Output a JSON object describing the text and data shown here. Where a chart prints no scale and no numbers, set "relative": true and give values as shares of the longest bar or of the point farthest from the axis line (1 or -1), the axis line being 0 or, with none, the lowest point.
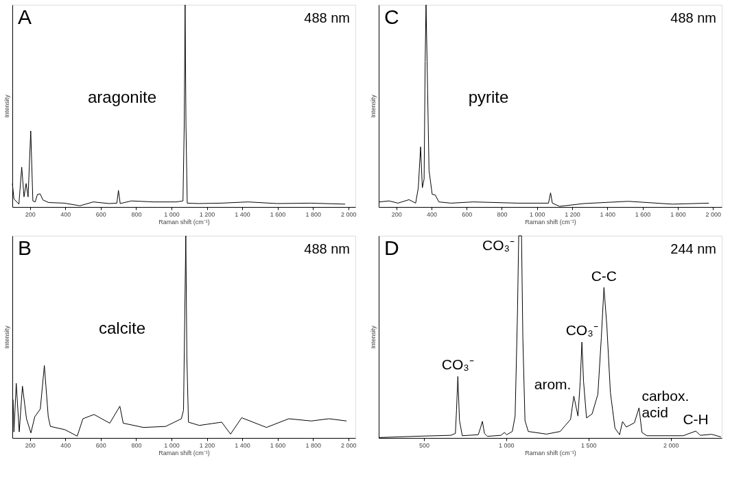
{
  "chart_data": [
    {
      "type": "line",
      "relative": true,
      "xlabel": "Raman shift (cm⁻¹)",
      "ylabel": "Intensity",
      "grid": false,
      "marker": "none",
      "line_style": "solid",
      "xlim": [
        100,
        2040
      ],
      "xticks": [
        200,
        400,
        600,
        800,
        {
          "value": 1000,
          "label": "1 000"
        },
        {
          "value": 1200,
          "label": "1 200"
        },
        {
          "value": 1400,
          "label": "1 400"
        },
        {
          "value": 1600,
          "label": "1 600"
        },
        {
          "value": 1800,
          "label": "1 800"
        },
        {
          "value": 2000,
          "label": "2 000"
        }
      ],
      "annotations": [
        "A",
        "488 nm",
        "aragonite"
      ],
      "series": [
        {
          "color": "#000000",
          "x": [
            100,
            109,
            137,
            153,
            166,
            178,
            189,
            204,
            216,
            229,
            242,
            257,
            273,
            305,
            394,
            482,
            558,
            647,
            691,
            700,
            710,
            773,
            900,
            1027,
            1065,
            1072,
            1077,
            1082,
            1089,
            1153,
            1280,
            1432,
            1596,
            1786,
            1982
          ],
          "values": [
            0.116,
            0.04,
            0.014,
            0.197,
            0.05,
            0.116,
            0.05,
            0.376,
            0.03,
            0.025,
            0.062,
            0.065,
            0.035,
            0.022,
            0.019,
            0.006,
            0.025,
            0.017,
            0.019,
            0.082,
            0.017,
            0.03,
            0.025,
            0.025,
            0.03,
            0.4,
            1.0,
            0.4,
            0.019,
            0.017,
            0.019,
            0.025,
            0.017,
            0.019,
            0.014
          ]
        }
      ]
    },
    {
      "type": "line",
      "relative": true,
      "xlabel": "Raman shift (cm⁻¹)",
      "ylabel": "Intensity",
      "grid": false,
      "marker": "none",
      "line_style": "solid",
      "xlim": [
        100,
        2050
      ],
      "xticks": [
        200,
        400,
        600,
        800,
        {
          "value": 1000,
          "label": "1 000"
        },
        {
          "value": 1200,
          "label": "1 200"
        },
        {
          "value": 1400,
          "label": "1 400"
        },
        {
          "value": 1600,
          "label": "1 600"
        },
        {
          "value": 1800,
          "label": "1 800"
        },
        {
          "value": 2000,
          "label": "2 000"
        }
      ],
      "annotations": [
        "C",
        "488 nm",
        "pyrite"
      ],
      "series": [
        {
          "color": "#000000",
          "x": [
            103,
            159,
            209,
            272,
            310,
            325,
            338,
            348,
            358,
            364,
            369,
            375,
            386,
            404,
            421,
            442,
            511,
            637,
            763,
            889,
            1065,
            1077,
            1087,
            1128,
            1266,
            1518,
            1769,
            1977
          ],
          "values": [
            0.025,
            0.03,
            0.019,
            0.036,
            0.019,
            0.095,
            0.297,
            0.095,
            0.138,
            0.72,
            1.0,
            0.72,
            0.181,
            0.0625,
            0.06,
            0.025,
            0.019,
            0.025,
            0.022,
            0.019,
            0.019,
            0.07,
            0.019,
            0.003,
            0.017,
            0.028,
            0.014,
            0.019
          ]
        }
      ]
    },
    {
      "type": "line",
      "relative": true,
      "xlabel": "Raman shift (cm⁻¹)",
      "ylabel": "Intensity",
      "grid": false,
      "marker": "none",
      "line_style": "solid",
      "xlim": [
        100,
        2040
      ],
      "xticks": [
        200,
        400,
        600,
        800,
        {
          "value": 1000,
          "label": "1 000"
        },
        {
          "value": 1200,
          "label": "1 200"
        },
        {
          "value": 1400,
          "label": "1 400"
        },
        {
          "value": 1600,
          "label": "1 600"
        },
        {
          "value": 1800,
          "label": "1 800"
        },
        {
          "value": 2000,
          "label": "2 000"
        }
      ],
      "annotations": [
        "B",
        "488 nm",
        "calcite"
      ],
      "series": [
        {
          "color": "#000000",
          "x": [
            104,
            109,
            122,
            139,
            157,
            180,
            205,
            227,
            258,
            281,
            303,
            315,
            397,
            467,
            499,
            562,
            651,
            708,
            727,
            841,
            967,
            1056,
            1068,
            1081,
            1087,
            1096,
            1157,
            1284,
            1334,
            1397,
            1537,
            1663,
            1790,
            1891,
            1990
          ],
          "values": [
            0.19,
            0.03,
            0.27,
            0.03,
            0.256,
            0.095,
            0.025,
            0.105,
            0.143,
            0.358,
            0.105,
            0.057,
            0.041,
            0.009,
            0.095,
            0.116,
            0.073,
            0.157,
            0.073,
            0.052,
            0.057,
            0.095,
            0.138,
            1.0,
            0.396,
            0.078,
            0.062,
            0.078,
            0.019,
            0.1,
            0.052,
            0.095,
            0.084,
            0.095,
            0.084
          ]
        }
      ]
    },
    {
      "type": "line",
      "relative": true,
      "xlabel": "Raman shift (cm⁻¹)",
      "ylabel": "Intensity",
      "grid": false,
      "marker": "none",
      "line_style": "solid",
      "xlim": [
        225,
        2310
      ],
      "xticks": [
        500,
        {
          "value": 1000,
          "label": "1 000"
        },
        {
          "value": 1500,
          "label": "1 500"
        },
        {
          "value": 2000,
          "label": "2 000"
        }
      ],
      "annotations": [
        "D",
        "244 nm",
        {
          "text": "CO₃⁻",
          "x": 706,
          "y": 0.304
        },
        {
          "text": "CO₃⁻",
          "x": 1076,
          "y": 1.0
        },
        {
          "text": "arom.",
          "x": 1411,
          "y": 0.207
        },
        {
          "text": "CO₃⁻",
          "x": 1460,
          "y": 0.474
        },
        {
          "text": "C-C",
          "x": 1594,
          "y": 0.744
        },
        {
          "text": "carbox.\nacid",
          "x": 1807,
          "y": 0.149
        },
        {
          "text": "C-H",
          "x": 2152,
          "y": 0.034
        }
      ],
      "series": [
        {
          "color": "#000000",
          "x": [
            226,
            483,
            663,
            691,
            698,
            706,
            716,
            733,
            830,
            843,
            855,
            868,
            885,
            968,
            989,
            1003,
            1037,
            1054,
            1068,
            1076,
            1093,
            1101,
            1114,
            1134,
            1245,
            1328,
            1356,
            1391,
            1411,
            1436,
            1450,
            1460,
            1470,
            1488,
            1522,
            1557,
            1578,
            1594,
            1612,
            1633,
            1661,
            1689,
            1707,
            1730,
            1779,
            1807,
            1825,
            1855,
            2076,
            2152,
            2180,
            2249,
            2305
          ],
          "values": [
            0.002,
            0.009,
            0.013,
            0.022,
            0.14,
            0.304,
            0.086,
            0.011,
            0.016,
            0.048,
            0.082,
            0.022,
            0.008,
            0.013,
            0.027,
            0.016,
            0.032,
            0.108,
            0.603,
            1.0,
            1.0,
            0.496,
            0.086,
            0.032,
            0.019,
            0.032,
            0.059,
            0.092,
            0.207,
            0.108,
            0.28,
            0.474,
            0.28,
            0.099,
            0.119,
            0.216,
            0.496,
            0.744,
            0.55,
            0.226,
            0.048,
            0.016,
            0.081,
            0.054,
            0.075,
            0.149,
            0.027,
            0.011,
            0.011,
            0.034,
            0.013,
            0.018,
            0.005
          ]
        }
      ]
    }
  ]
}
